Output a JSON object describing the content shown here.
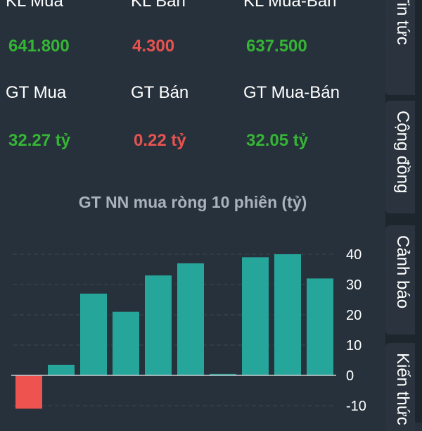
{
  "stats": {
    "row1": [
      {
        "label": "KL Mua",
        "value": "641.800",
        "color": "green"
      },
      {
        "label": "KL Bán",
        "value": "4.300",
        "color": "red"
      },
      {
        "label": "KL Mua-Bán",
        "value": "637.500",
        "color": "green"
      }
    ],
    "row2": [
      {
        "label": "GT Mua",
        "value": "32.27 tỷ",
        "color": "green"
      },
      {
        "label": "GT Bán",
        "value": "0.22 tỷ",
        "color": "red"
      },
      {
        "label": "GT Mua-Bán",
        "value": "32.05 tỷ",
        "color": "green"
      }
    ]
  },
  "colors": {
    "positive_bar": "#26a69a",
    "negative_bar": "#ef5350",
    "green_text": "#35b535",
    "red_text": "#e8534f",
    "background": "#27313b"
  },
  "chart_data": {
    "type": "bar",
    "title": "GT NN mua ròng 10 phiên (tỷ)",
    "values": [
      -11,
      3.5,
      27,
      21,
      33,
      37,
      0.5,
      39,
      40,
      32
    ],
    "ylim": [
      -10,
      40
    ],
    "yticks": [
      40,
      30,
      20,
      10,
      0,
      -10
    ],
    "grid": true
  },
  "tabs": [
    {
      "label": "Tin tức"
    },
    {
      "label": "Cộng đồng"
    },
    {
      "label": "Cảnh báo"
    },
    {
      "label": "Kiến thức"
    }
  ]
}
